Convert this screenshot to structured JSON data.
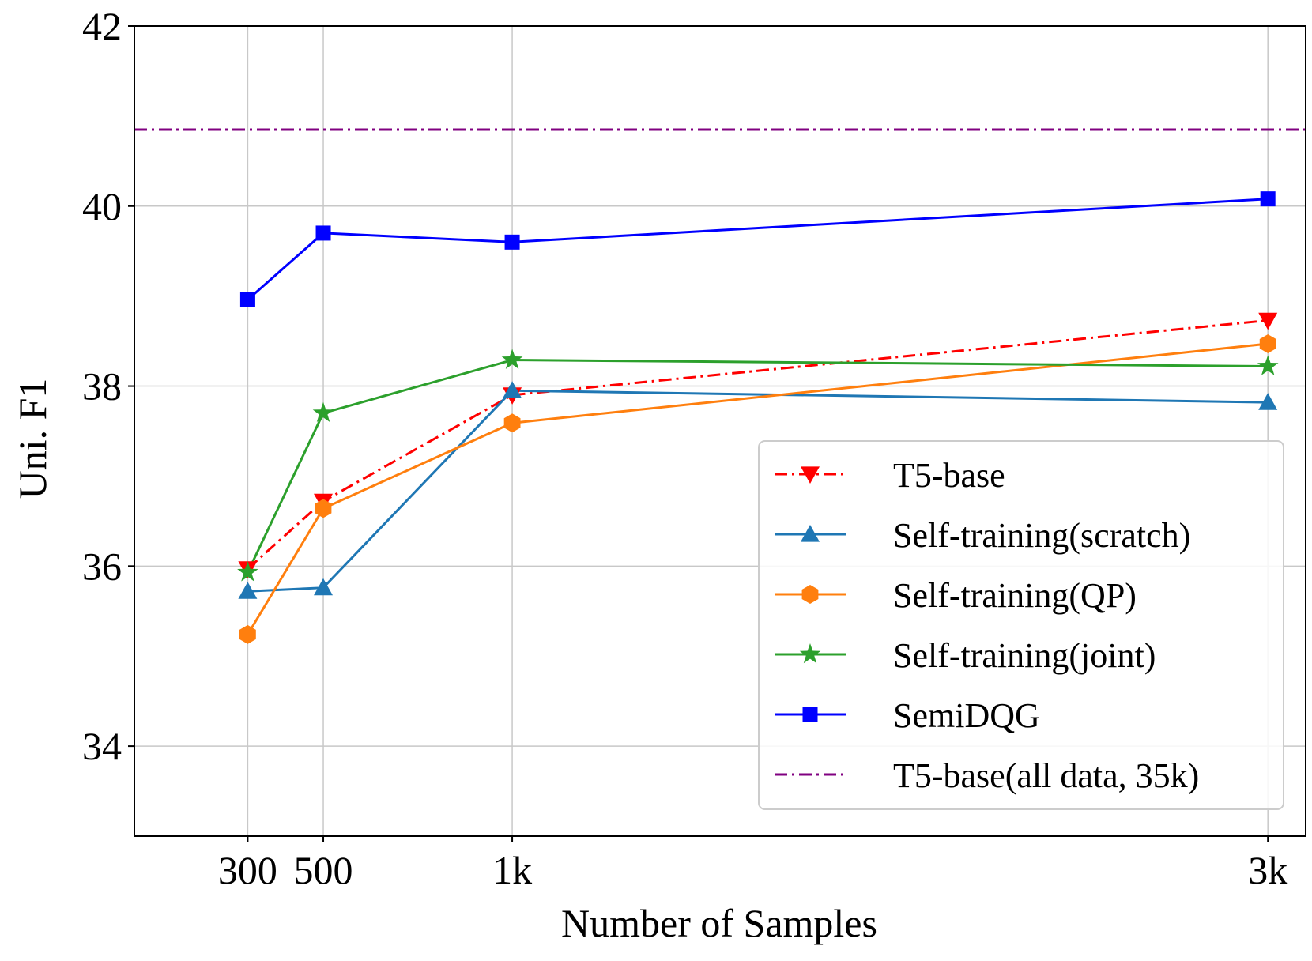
{
  "chart_data": {
    "type": "line",
    "title": "",
    "xlabel": "Number of Samples",
    "ylabel": "Uni. F1",
    "x": [
      300,
      500,
      1000,
      3000
    ],
    "x_tick_labels": [
      "300",
      "500",
      "1k",
      "3k"
    ],
    "xlim": [
      0,
      3100
    ],
    "ylim": [
      33,
      42
    ],
    "y_ticks": [
      34,
      36,
      38,
      40,
      42
    ],
    "y_tick_labels": [
      "34",
      "36",
      "38",
      "40",
      "42"
    ],
    "grid": true,
    "legend_position": "lower-right",
    "series": [
      {
        "name": "T5-base",
        "color": "#ff0000",
        "linestyle": "dashdot",
        "marker": "triangle-down",
        "values": [
          35.97,
          36.72,
          37.9,
          38.73
        ]
      },
      {
        "name": "Self-training(scratch)",
        "color": "#1f77b4",
        "linestyle": "solid",
        "marker": "triangle-up",
        "values": [
          35.72,
          35.76,
          37.95,
          37.82
        ]
      },
      {
        "name": "Self-training(QP)",
        "color": "#ff7f0e",
        "linestyle": "solid",
        "marker": "hexagon",
        "values": [
          35.24,
          36.64,
          37.59,
          38.47
        ]
      },
      {
        "name": "Self-training(joint)",
        "color": "#2ca02c",
        "linestyle": "solid",
        "marker": "star",
        "values": [
          35.93,
          37.7,
          38.29,
          38.22
        ]
      },
      {
        "name": "SemiDQG",
        "color": "#0000ff",
        "linestyle": "solid",
        "marker": "square",
        "values": [
          38.96,
          39.7,
          39.6,
          40.08
        ]
      }
    ],
    "reference_lines": [
      {
        "name": "T5-base(all data, 35k)",
        "color": "#800080",
        "linestyle": "dashdot",
        "y": 40.85
      }
    ]
  }
}
